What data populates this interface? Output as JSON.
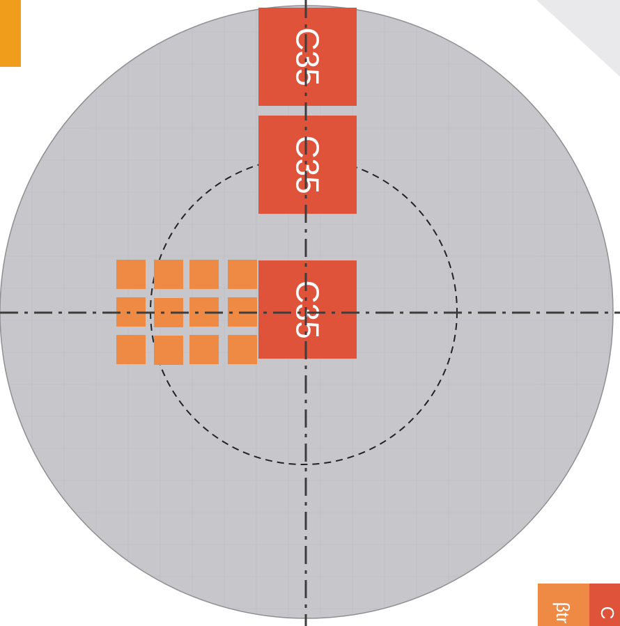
{
  "colors": {
    "background": "#ffffff",
    "corner_fade": "#e9e9eb",
    "disc_fill": "#c6c6cb",
    "disc_edge": "#8e8e94",
    "grid_line": "#b4b9c8",
    "large_square": "#e0533b",
    "small_square": "#ee8a43",
    "corner_tab": "#ef9d1a",
    "axis_line": "#3d3d3d",
    "dashed_circle": "#222222",
    "label_text": "#ffffff"
  },
  "large_squares": [
    {
      "label": "C35"
    },
    {
      "label": "C35"
    },
    {
      "label": "C35"
    }
  ],
  "small_squares_grid": {
    "rows": 3,
    "cols": 4
  },
  "legend": {
    "items": [
      {
        "label": "βtr",
        "color": "#ee8a43"
      },
      {
        "label": "C",
        "color": "#e0533b"
      }
    ]
  }
}
